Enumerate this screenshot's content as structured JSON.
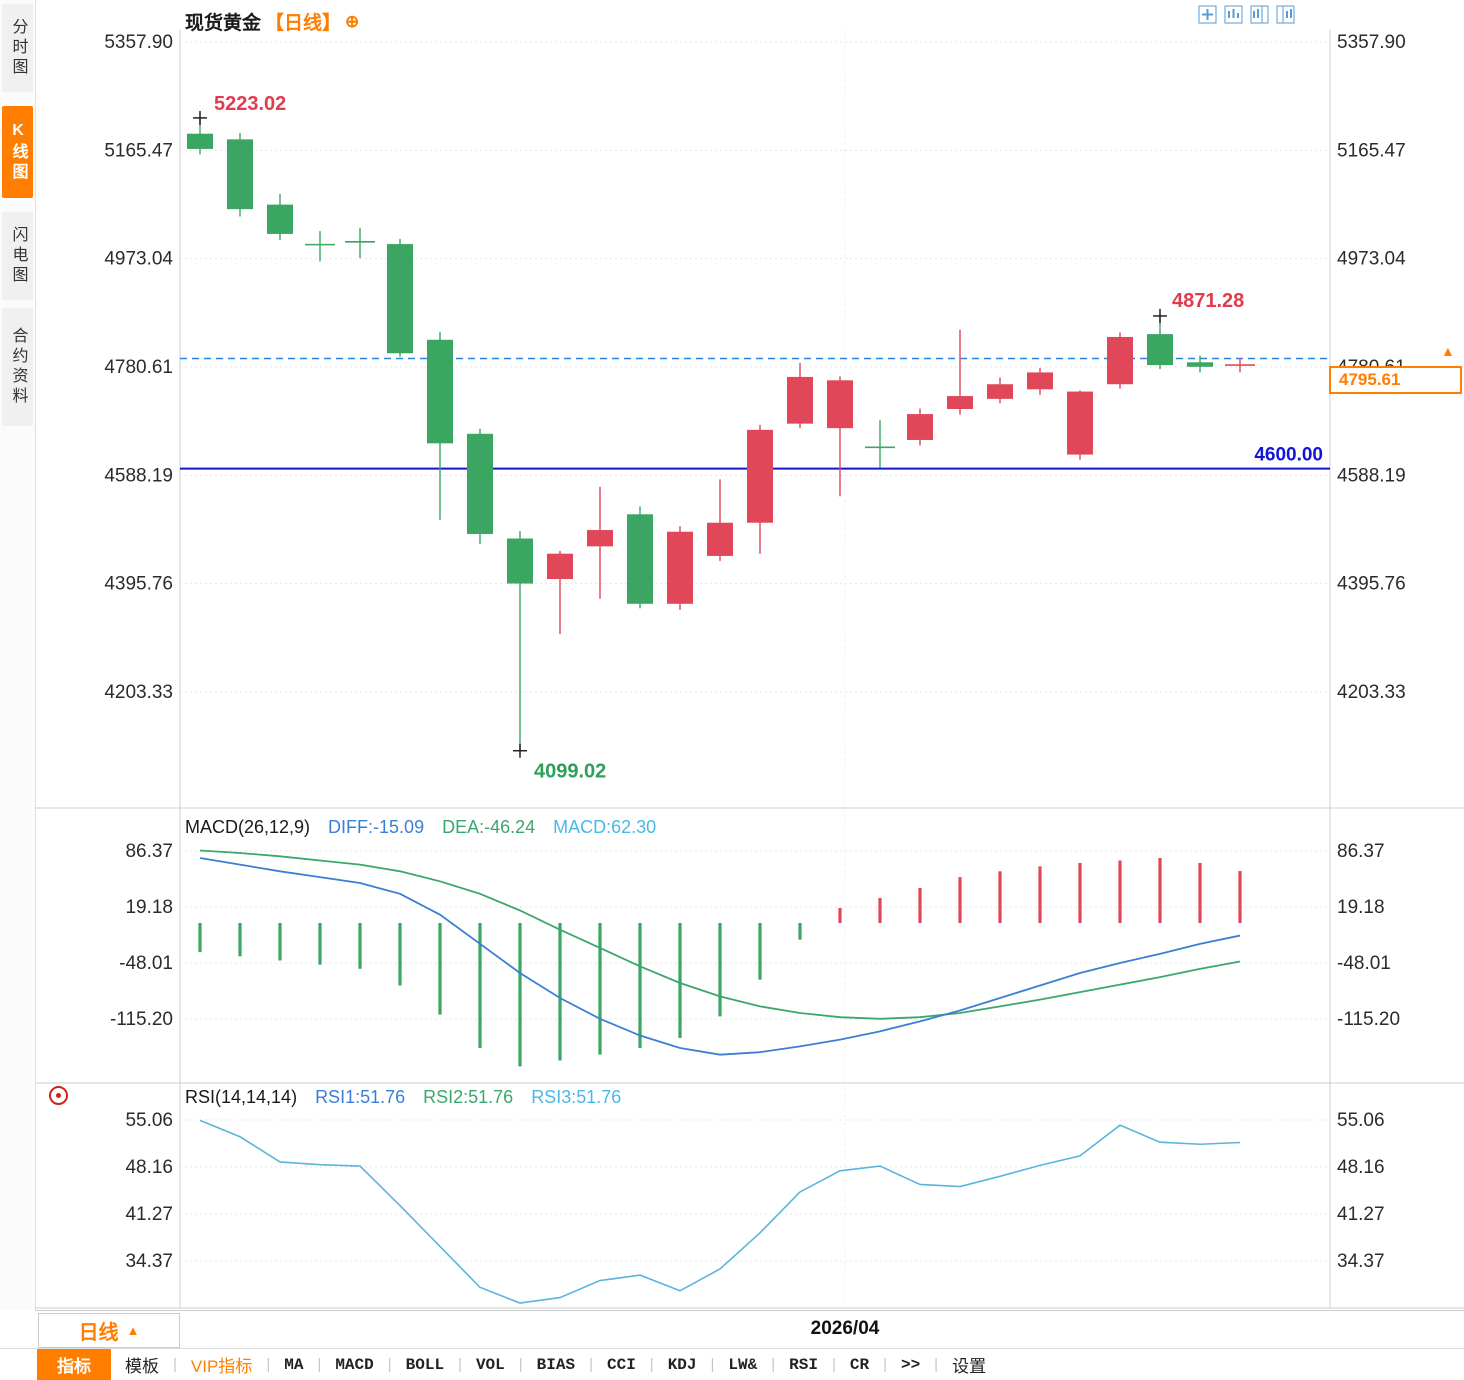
{
  "header": {
    "title": "现货黄金",
    "period_tag": "【日线】",
    "plus_icon": "⊕"
  },
  "sidebar": {
    "tabs": [
      {
        "label": "分时图",
        "active": false
      },
      {
        "label": "K线图",
        "active": true
      },
      {
        "label": "闪电图",
        "active": false
      },
      {
        "label": "合约资料",
        "active": false
      }
    ]
  },
  "price_box": {
    "value": "4795.61",
    "arrow": "▲"
  },
  "macd_header": {
    "name": "MACD(26,12,9)",
    "diff": "DIFF:-15.09",
    "dea": "DEA:-46.24",
    "macd": "MACD:62.30"
  },
  "rsi_header": {
    "name": "RSI(14,14,14)",
    "rsi1": "RSI1:51.76",
    "rsi2": "RSI2:51.76",
    "rsi3": "RSI3:51.76"
  },
  "bottom": {
    "period_label": "日线",
    "period_arrow": "▲",
    "date_label": "2026/04"
  },
  "toolbar": {
    "items": [
      {
        "label": "指标",
        "variant": "active"
      },
      {
        "label": "模板",
        "variant": "cjk"
      },
      {
        "label": "VIP指标",
        "variant": "vip"
      },
      {
        "label": "MA",
        "variant": "mono"
      },
      {
        "label": "MACD",
        "variant": "mono"
      },
      {
        "label": "BOLL",
        "variant": "mono"
      },
      {
        "label": "VOL",
        "variant": "mono"
      },
      {
        "label": "BIAS",
        "variant": "mono"
      },
      {
        "label": "CCI",
        "variant": "mono"
      },
      {
        "label": "KDJ",
        "variant": "mono"
      },
      {
        "label": "LW&",
        "variant": "mono"
      },
      {
        "label": "RSI",
        "variant": "mono"
      },
      {
        "label": "CR",
        "variant": "mono"
      },
      {
        "label": ">>",
        "variant": "mono"
      },
      {
        "label": "设置",
        "variant": "cjk"
      }
    ]
  },
  "colors": {
    "up_candle": "#e0485a",
    "down_candle": "#3ba562",
    "high_label": "#e23b4e",
    "low_label": "#2e9e5b",
    "diff_line": "#3b7fd4",
    "dea_line": "#3aa76d",
    "rsi_line": "#5ab5dd",
    "support_line": "#1414cc",
    "support_label": "#1414d8",
    "current_line": "#2b82d9",
    "accent": "#ff7e00"
  },
  "chart_data": {
    "type": "candlestick",
    "title": "现货黄金【日线】",
    "x_label": "2026/04",
    "current_price": 4795.61,
    "support_line": 4600.0,
    "price_ticks": [
      5357.9,
      5165.47,
      4973.04,
      4780.61,
      4588.19,
      4395.76,
      4203.33
    ],
    "macd_ticks": [
      86.37,
      19.18,
      -48.01,
      -115.2
    ],
    "rsi_ticks": [
      55.06,
      48.16,
      41.27,
      34.37
    ],
    "candles": [
      [
        5195,
        5223.02,
        5158,
        5168
      ],
      [
        5185,
        5196,
        5048,
        5061
      ],
      [
        5069,
        5088,
        5006,
        5017
      ],
      [
        5003,
        5022,
        4968,
        4998
      ],
      [
        5007,
        5028,
        4974,
        5003
      ],
      [
        4999,
        5008,
        4799,
        4805
      ],
      [
        4829,
        4843,
        4509,
        4645
      ],
      [
        4662,
        4671,
        4466,
        4484
      ],
      [
        4476,
        4489,
        4099.02,
        4396
      ],
      [
        4404,
        4454,
        4306,
        4449
      ],
      [
        4462,
        4568,
        4369,
        4491
      ],
      [
        4519,
        4533,
        4352,
        4360
      ],
      [
        4360,
        4498,
        4349,
        4488
      ],
      [
        4445,
        4581,
        4436,
        4504
      ],
      [
        4504,
        4678,
        4449,
        4669
      ],
      [
        4680,
        4788,
        4672,
        4763
      ],
      [
        4672,
        4764,
        4551,
        4757
      ],
      [
        4641,
        4686,
        4602,
        4638
      ],
      [
        4651,
        4707,
        4641,
        4697
      ],
      [
        4706,
        4847,
        4696,
        4729
      ],
      [
        4724,
        4762,
        4716,
        4750
      ],
      [
        4741,
        4779,
        4731,
        4771
      ],
      [
        4625,
        4739,
        4616,
        4737
      ],
      [
        4750,
        4842,
        4742,
        4834
      ],
      [
        4839,
        4871.28,
        4777,
        4784
      ],
      [
        4789,
        4801,
        4771,
        4781
      ],
      [
        4779,
        4796,
        4771,
        4784
      ]
    ],
    "markers": {
      "high": {
        "index": 0,
        "price": 5223.02
      },
      "low": {
        "index": 8,
        "price": 4099.02
      },
      "recent_high": {
        "index": 24,
        "price": 4871.28
      }
    },
    "macd": {
      "diff": [
        78,
        70,
        62,
        55,
        48,
        35,
        10,
        -25,
        -60,
        -90,
        -115,
        -135,
        -150,
        -158,
        -155,
        -148,
        -140,
        -130,
        -118,
        -105,
        -90,
        -75,
        -60,
        -48,
        -37,
        -25,
        -15.09
      ],
      "dea": [
        87,
        84,
        80,
        75,
        70,
        62,
        50,
        35,
        15,
        -8,
        -30,
        -52,
        -72,
        -88,
        -100,
        -108,
        -113,
        -115,
        -113,
        -108,
        -100,
        -92,
        -83,
        -74,
        -65,
        -55,
        -46.24
      ],
      "hist": [
        -35,
        -40,
        -45,
        -50,
        -55,
        -75,
        -110,
        -150,
        -172,
        -165,
        -158,
        -150,
        -138,
        -112,
        -68,
        -20,
        18,
        30,
        42,
        55,
        62,
        68,
        72,
        75,
        78,
        72,
        62.3
      ]
    },
    "rsi": [
      55.0,
      52.6,
      48.9,
      48.5,
      48.3,
      42.5,
      36.5,
      30.5,
      28.2,
      29.0,
      31.5,
      32.3,
      30.0,
      33.2,
      38.5,
      44.5,
      47.6,
      48.3,
      45.6,
      45.3,
      46.8,
      48.4,
      49.8,
      54.3,
      51.8,
      51.5,
      51.76
    ]
  }
}
